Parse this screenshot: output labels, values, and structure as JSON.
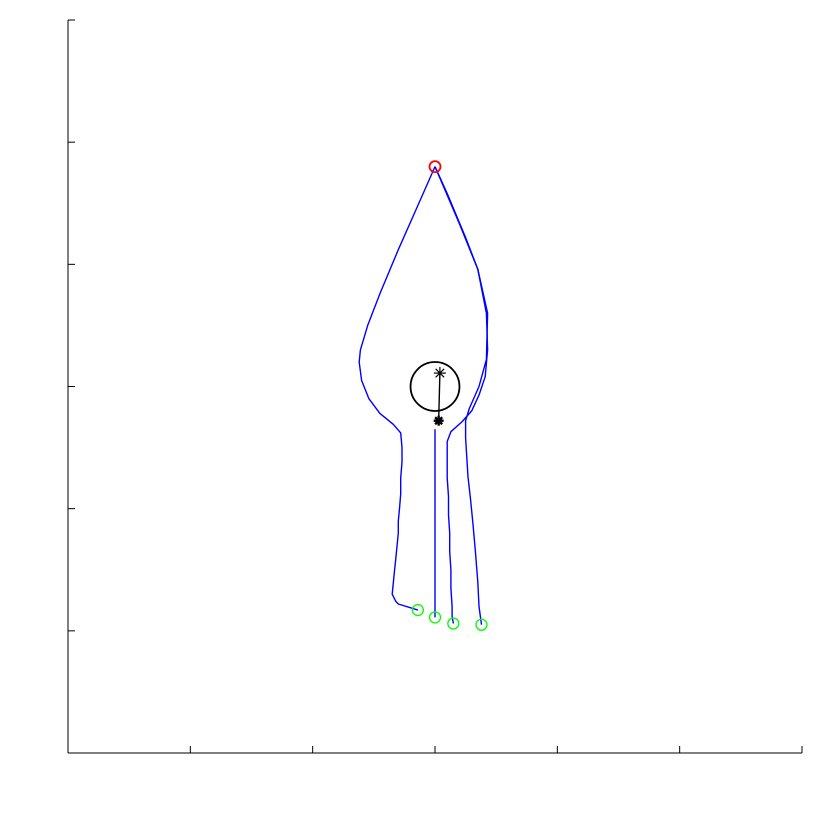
{
  "chart_data": {
    "type": "line",
    "title": "",
    "xlabel": "",
    "ylabel": "",
    "xlim": [
      0,
      6
    ],
    "ylim": [
      0,
      6
    ],
    "xticks": [
      0,
      1,
      2,
      3,
      4,
      5,
      6
    ],
    "yticks": [
      0,
      1,
      2,
      3,
      4,
      5,
      6
    ],
    "show_tick_labels": false,
    "grid": false,
    "legend": "none",
    "colors": {
      "paths": "#0000ff",
      "start_marker": "#ff0000",
      "goal_markers": "#00ff00",
      "obstacle": "#000000"
    },
    "obstacle": {
      "center": [
        3.0,
        3.0
      ],
      "radius": 0.2
    },
    "arrow": {
      "from": [
        3.03,
        2.72
      ],
      "to": [
        3.04,
        3.11
      ]
    },
    "start": {
      "x": 3.0,
      "y": 4.8
    },
    "goals": [
      {
        "x": 2.86,
        "y": 1.17
      },
      {
        "x": 3.0,
        "y": 1.11
      },
      {
        "x": 3.15,
        "y": 1.06
      },
      {
        "x": 3.38,
        "y": 1.05
      }
    ],
    "series": [
      {
        "x": [
          3.0,
          2.85,
          2.7,
          2.55,
          2.45,
          2.39,
          2.38,
          2.4,
          2.46,
          2.55,
          2.66,
          2.72,
          2.73,
          2.73,
          2.72,
          2.72,
          2.71,
          2.7,
          2.7,
          2.69,
          2.68,
          2.67,
          2.66,
          2.65,
          2.66,
          2.67,
          2.68,
          2.7,
          2.86
        ],
        "y": [
          4.8,
          4.46,
          4.12,
          3.76,
          3.5,
          3.3,
          3.2,
          3.05,
          2.9,
          2.78,
          2.69,
          2.62,
          2.5,
          2.38,
          2.25,
          2.12,
          2.0,
          1.9,
          1.8,
          1.7,
          1.6,
          1.5,
          1.4,
          1.3,
          1.28,
          1.26,
          1.24,
          1.22,
          1.17
        ]
      },
      {
        "x": [
          3.0,
          3.0,
          3.0,
          3.0,
          3.0,
          3.0,
          3.0,
          3.0,
          3.0,
          3.0,
          3.0
        ],
        "y": [
          2.65,
          2.5,
          2.35,
          2.2,
          2.05,
          1.9,
          1.75,
          1.6,
          1.45,
          1.3,
          1.11
        ]
      },
      {
        "x": [
          3.0,
          3.1,
          3.25,
          3.35,
          3.42,
          3.43,
          3.41,
          3.36,
          3.3,
          3.22,
          3.13,
          3.1,
          3.1,
          3.1,
          3.11,
          3.11,
          3.12,
          3.12,
          3.13,
          3.13,
          3.14,
          3.14,
          3.15
        ],
        "y": [
          4.8,
          4.58,
          4.22,
          3.96,
          3.6,
          3.3,
          3.08,
          2.93,
          2.8,
          2.71,
          2.63,
          2.55,
          2.4,
          2.25,
          2.1,
          1.95,
          1.8,
          1.65,
          1.5,
          1.35,
          1.2,
          1.12,
          1.06
        ]
      },
      {
        "x": [
          3.0,
          3.2,
          3.35,
          3.43,
          3.42,
          3.36,
          3.28,
          3.25,
          3.25,
          3.26,
          3.27,
          3.29,
          3.31,
          3.33,
          3.35,
          3.36,
          3.38
        ],
        "y": [
          4.8,
          4.33,
          3.96,
          3.6,
          3.22,
          3.0,
          2.82,
          2.72,
          2.58,
          2.42,
          2.26,
          2.08,
          1.88,
          1.65,
          1.4,
          1.2,
          1.05
        ]
      }
    ]
  }
}
